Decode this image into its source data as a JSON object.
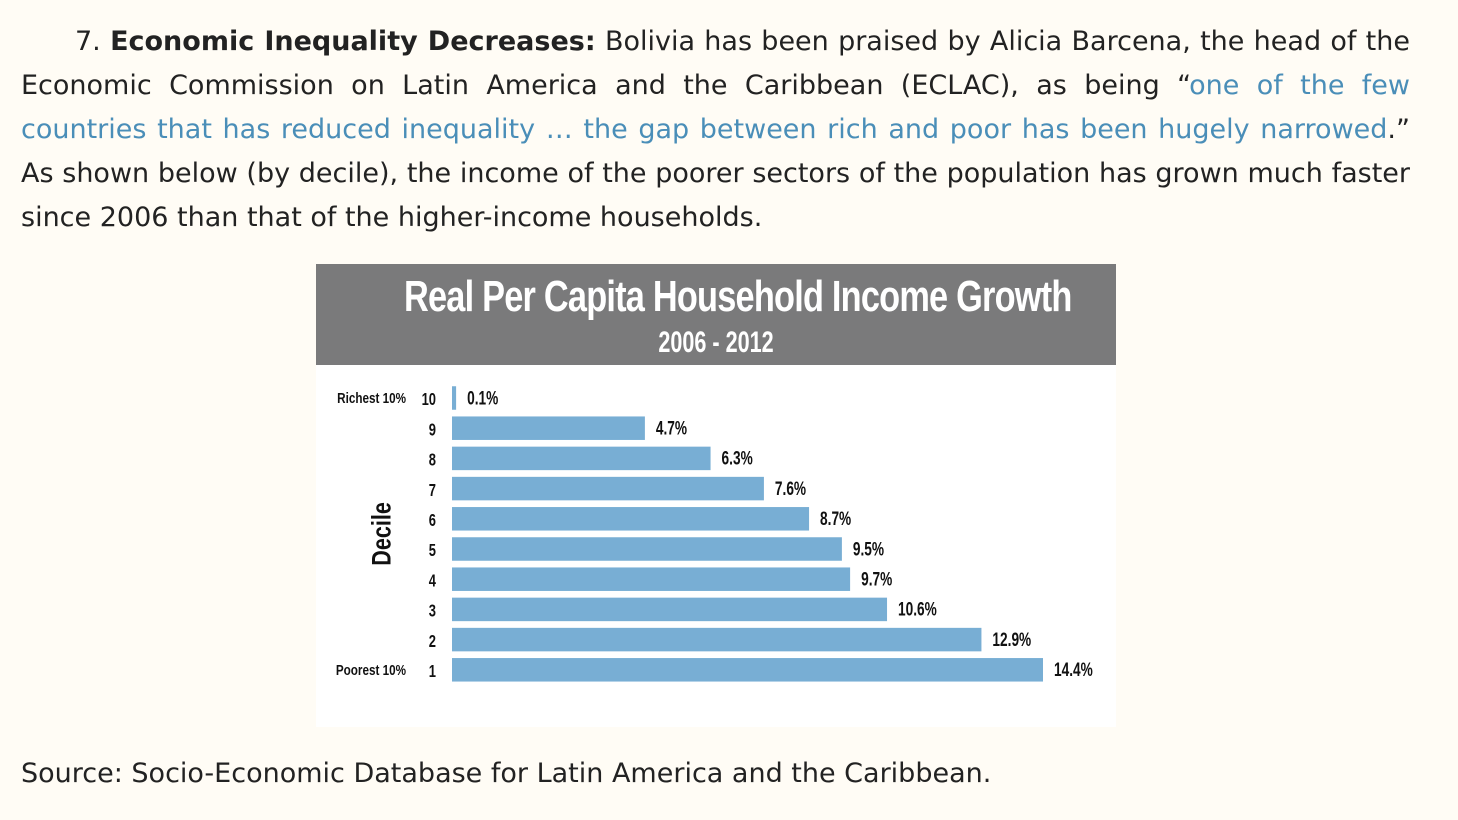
{
  "article": {
    "item_number": "7.",
    "heading": "Economic Inequality Decreases:",
    "text_before_quote": "Bolivia has been praised by Alicia Barcena, the head of the Economic Commission on Latin America and the Caribbean (ECLAC), as being “",
    "quote_link": "one of the few countries that has reduced inequality … the gap between rich and poor has been hugely narrowed",
    "text_after_quote": ".” As shown below (by decile), the income of the poorer sectors of the population has grown much faster since 2006 than that of the higher-income households.",
    "source": "Source: Socio-Economic Database for Latin America and the Caribbean."
  },
  "colors": {
    "link": "#4a8eb8",
    "bar": "#78aed4",
    "header_bg": "#7a7a7b"
  },
  "chart_data": {
    "type": "bar",
    "orientation": "horizontal",
    "title": "Real Per Capita Household Income Growth",
    "subtitle": "2006 - 2012",
    "ylabel": "Decile",
    "xlabel": "",
    "categories": [
      "10",
      "9",
      "8",
      "7",
      "6",
      "5",
      "4",
      "3",
      "2",
      "1"
    ],
    "category_notes": {
      "10": "Richest 10%",
      "1": "Poorest 10%"
    },
    "values": [
      0.1,
      4.7,
      6.3,
      7.6,
      8.7,
      9.5,
      9.7,
      10.6,
      12.9,
      14.4
    ],
    "value_labels": [
      "0.1%",
      "4.7%",
      "6.3%",
      "7.6%",
      "8.7%",
      "9.5%",
      "9.7%",
      "10.6%",
      "12.9%",
      "14.4%"
    ],
    "xlim": [
      0,
      14.4
    ],
    "grid": false,
    "legend": "none"
  }
}
